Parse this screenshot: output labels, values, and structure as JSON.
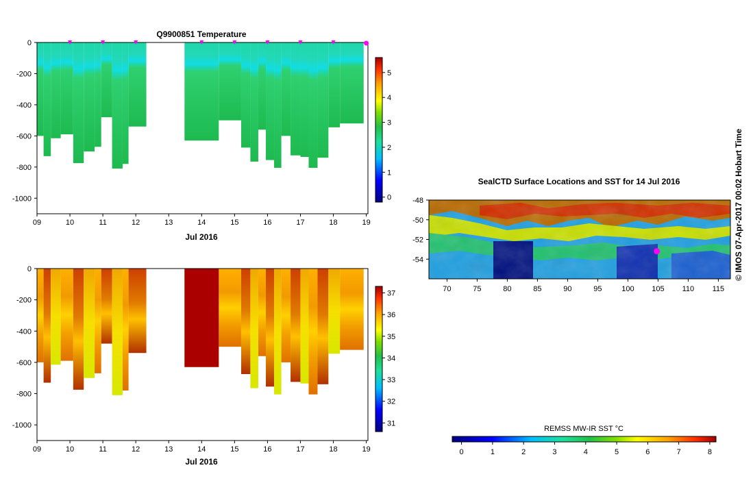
{
  "chart_data": [
    {
      "type": "heatmap",
      "title": "Q9900851  Temperature",
      "xlabel": "Jul 2016",
      "ylabel": "",
      "x_ticks": [
        "09",
        "10",
        "11",
        "12",
        "13",
        "14",
        "15",
        "16",
        "17",
        "18",
        "19"
      ],
      "y_ticks": [
        "0",
        "-200",
        "-400",
        "-600",
        "-800",
        "-1000"
      ],
      "xlim": [
        9,
        19.05
      ],
      "ylim": [
        -1100,
        0
      ],
      "colorbar": {
        "ticks": [
          "0",
          "1",
          "2",
          "3",
          "4",
          "5"
        ],
        "range": [
          -0.2,
          5.6
        ]
      },
      "surface_markers_day": [
        10,
        11,
        12,
        14,
        15,
        16,
        17,
        18,
        19
      ],
      "profiles": [
        {
          "t0": 9.0,
          "t1": 9.2,
          "depth": 600,
          "value": 2.2
        },
        {
          "t0": 9.2,
          "t1": 9.42,
          "depth": 730,
          "value": 2.2
        },
        {
          "t0": 9.42,
          "t1": 9.72,
          "depth": 615,
          "value": 2.2
        },
        {
          "t0": 9.72,
          "t1": 10.1,
          "depth": 590,
          "value": 2.2
        },
        {
          "t0": 10.1,
          "t1": 10.42,
          "depth": 775,
          "value": 2.2
        },
        {
          "t0": 10.42,
          "t1": 10.75,
          "depth": 700,
          "value": 2.2
        },
        {
          "t0": 10.75,
          "t1": 10.95,
          "depth": 670,
          "value": 2.2
        },
        {
          "t0": 10.95,
          "t1": 11.28,
          "depth": 480,
          "value": 2.2
        },
        {
          "t0": 11.28,
          "t1": 11.6,
          "depth": 810,
          "value": 2.2
        },
        {
          "t0": 11.6,
          "t1": 11.78,
          "depth": 780,
          "value": 2.2
        },
        {
          "t0": 11.78,
          "t1": 12.32,
          "depth": 540,
          "value": 2.2
        },
        {
          "t0": 13.48,
          "t1": 14.52,
          "depth": 630,
          "value": 2.2
        },
        {
          "t0": 14.52,
          "t1": 15.2,
          "depth": 500,
          "value": 2.2
        },
        {
          "t0": 15.2,
          "t1": 15.48,
          "depth": 675,
          "value": 2.2
        },
        {
          "t0": 15.48,
          "t1": 15.72,
          "depth": 765,
          "value": 2.2
        },
        {
          "t0": 15.72,
          "t1": 15.95,
          "depth": 560,
          "value": 2.2
        },
        {
          "t0": 15.95,
          "t1": 16.2,
          "depth": 755,
          "value": 2.2
        },
        {
          "t0": 16.2,
          "t1": 16.42,
          "depth": 805,
          "value": 2.2
        },
        {
          "t0": 16.42,
          "t1": 16.7,
          "depth": 600,
          "value": 2.2
        },
        {
          "t0": 16.7,
          "t1": 17.0,
          "depth": 725,
          "value": 2.2
        },
        {
          "t0": 17.0,
          "t1": 17.25,
          "depth": 735,
          "value": 2.2
        },
        {
          "t0": 17.25,
          "t1": 17.52,
          "depth": 805,
          "value": 2.2
        },
        {
          "t0": 17.52,
          "t1": 17.85,
          "depth": 740,
          "value": 2.2
        },
        {
          "t0": 17.85,
          "t1": 18.2,
          "depth": 545,
          "value": 2.2
        },
        {
          "t0": 18.2,
          "t1": 18.92,
          "depth": 520,
          "value": 2.2
        }
      ]
    },
    {
      "type": "heatmap",
      "title": "",
      "xlabel": "Jul 2016",
      "ylabel": "",
      "x_ticks": [
        "09",
        "10",
        "11",
        "12",
        "13",
        "14",
        "15",
        "16",
        "17",
        "18",
        "19"
      ],
      "y_ticks": [
        "0",
        "-200",
        "-400",
        "-600",
        "-800",
        "-1000"
      ],
      "xlim": [
        9,
        19.05
      ],
      "ylim": [
        -1100,
        0
      ],
      "colorbar": {
        "ticks": [
          "31",
          "32",
          "33",
          "34",
          "35",
          "36",
          "37"
        ],
        "range": [
          30.6,
          37.3
        ]
      },
      "profiles_same_as_panel": 1,
      "blocks": [
        {
          "t0": 13.48,
          "t1": 14.52,
          "value": 37.2
        }
      ]
    },
    {
      "type": "heatmap",
      "title": "SealCTD Surface Locations and SST for 14 Jul 2016",
      "xlabel": "",
      "ylabel": "",
      "x_ticks": [
        "70",
        "75",
        "80",
        "85",
        "90",
        "95",
        "100",
        "105",
        "110",
        "115"
      ],
      "y_ticks": [
        "-48",
        "-50",
        "-52",
        "-54"
      ],
      "xlim": [
        67,
        117
      ],
      "ylim": [
        -56,
        -48
      ],
      "colorbar": {
        "label": "REMSS MW-IR SST °C",
        "ticks": [
          "0",
          "1",
          "2",
          "3",
          "4",
          "5",
          "6",
          "7",
          "8"
        ],
        "range": [
          -0.3,
          8.2
        ]
      },
      "seal_location": {
        "lon": 104.8,
        "lat": -53.2
      }
    }
  ],
  "credit": "©  IMOS 07-Apr-2017 00:02 Hobart Time",
  "colors": {
    "palette": [
      "#00007f",
      "#0000ff",
      "#007fff",
      "#00d8ff",
      "#1fdf7a",
      "#00b43a",
      "#4fd100",
      "#e8ff00",
      "#ffc000",
      "#ff7f00",
      "#ff2000",
      "#a00000"
    ],
    "seal_marker": "#ff00ff",
    "ocean_deep_blue": "#0010a0"
  }
}
